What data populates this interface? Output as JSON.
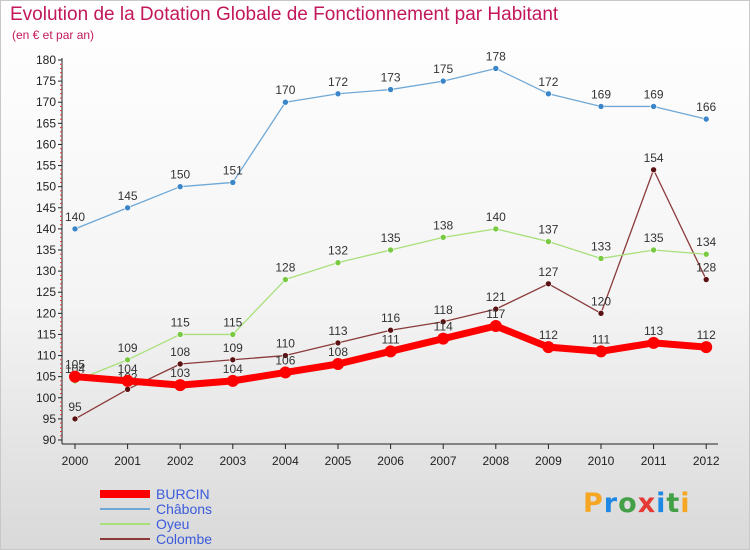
{
  "title": "Evolution de la Dotation Globale de Fonctionnement par Habitant",
  "subtitle": "(en € et par an)",
  "brand": {
    "text": "Proxiti",
    "letter_colors": [
      "#f5a623",
      "#1e88e5",
      "#43a047",
      "#e53935",
      "#1e88e5",
      "#43a047",
      "#f5a623"
    ]
  },
  "chart_data": {
    "type": "line",
    "title": "Evolution de la Dotation Globale de Fonctionnement par Habitant",
    "ylabel": "(en € et par an)",
    "xlabel": "",
    "x": [
      "2000",
      "2001",
      "2002",
      "2003",
      "2004",
      "2005",
      "2006",
      "2007",
      "2008",
      "2009",
      "2010",
      "2011",
      "2012"
    ],
    "y_ticks": [
      "90",
      "95",
      "100",
      "105",
      "110",
      "115",
      "120",
      "125",
      "130",
      "135",
      "140",
      "145",
      "150",
      "155",
      "160",
      "165",
      "170",
      "175",
      "180"
    ],
    "ylim": [
      90,
      180
    ],
    "grid": false,
    "legend_position": "bottom-left",
    "series": [
      {
        "name": "Colombe",
        "color": "#8b3a3a",
        "marker": "#5a1212",
        "width": "thin",
        "values": [
          95,
          102,
          108,
          109,
          110,
          113,
          116,
          118,
          121,
          127,
          120,
          154,
          128
        ],
        "labels": [
          "95",
          "102",
          "108",
          "109",
          "110",
          "113",
          "116",
          "118",
          "121",
          "127",
          "120",
          "154",
          "128"
        ]
      },
      {
        "name": "Oyeu",
        "color": "#a8e07a",
        "marker": "#7ac943",
        "width": "thin",
        "values": [
          104,
          109,
          115,
          115,
          128,
          132,
          135,
          138,
          140,
          137,
          133,
          135,
          134
        ],
        "labels": [
          "104",
          "109",
          "115",
          "115",
          "128",
          "132",
          "135",
          "138",
          "140",
          "137",
          "133",
          "135",
          "134"
        ]
      },
      {
        "name": "Châbons",
        "color": "#6fa8d6",
        "marker": "#3a86c8",
        "width": "thin",
        "values": [
          140,
          145,
          150,
          151,
          170,
          172,
          173,
          175,
          178,
          172,
          169,
          169,
          166
        ],
        "labels": [
          "140",
          "145",
          "150",
          "151",
          "170",
          "172",
          "173",
          "175",
          "178",
          "172",
          "169",
          "169",
          "166"
        ]
      },
      {
        "name": "BURCIN",
        "color": "#ff0000",
        "marker": "#ff0000",
        "width": "thick",
        "values": [
          105,
          104,
          103,
          104,
          106,
          108,
          111,
          114,
          117,
          112,
          111,
          113,
          112
        ],
        "labels": [
          "105",
          "104",
          "103",
          "104",
          "106",
          "108",
          "111",
          "114",
          "117",
          "112",
          "111",
          "113",
          "112"
        ]
      }
    ],
    "legend_order": [
      "BURCIN",
      "Châbons",
      "Oyeu",
      "Colombe"
    ]
  }
}
